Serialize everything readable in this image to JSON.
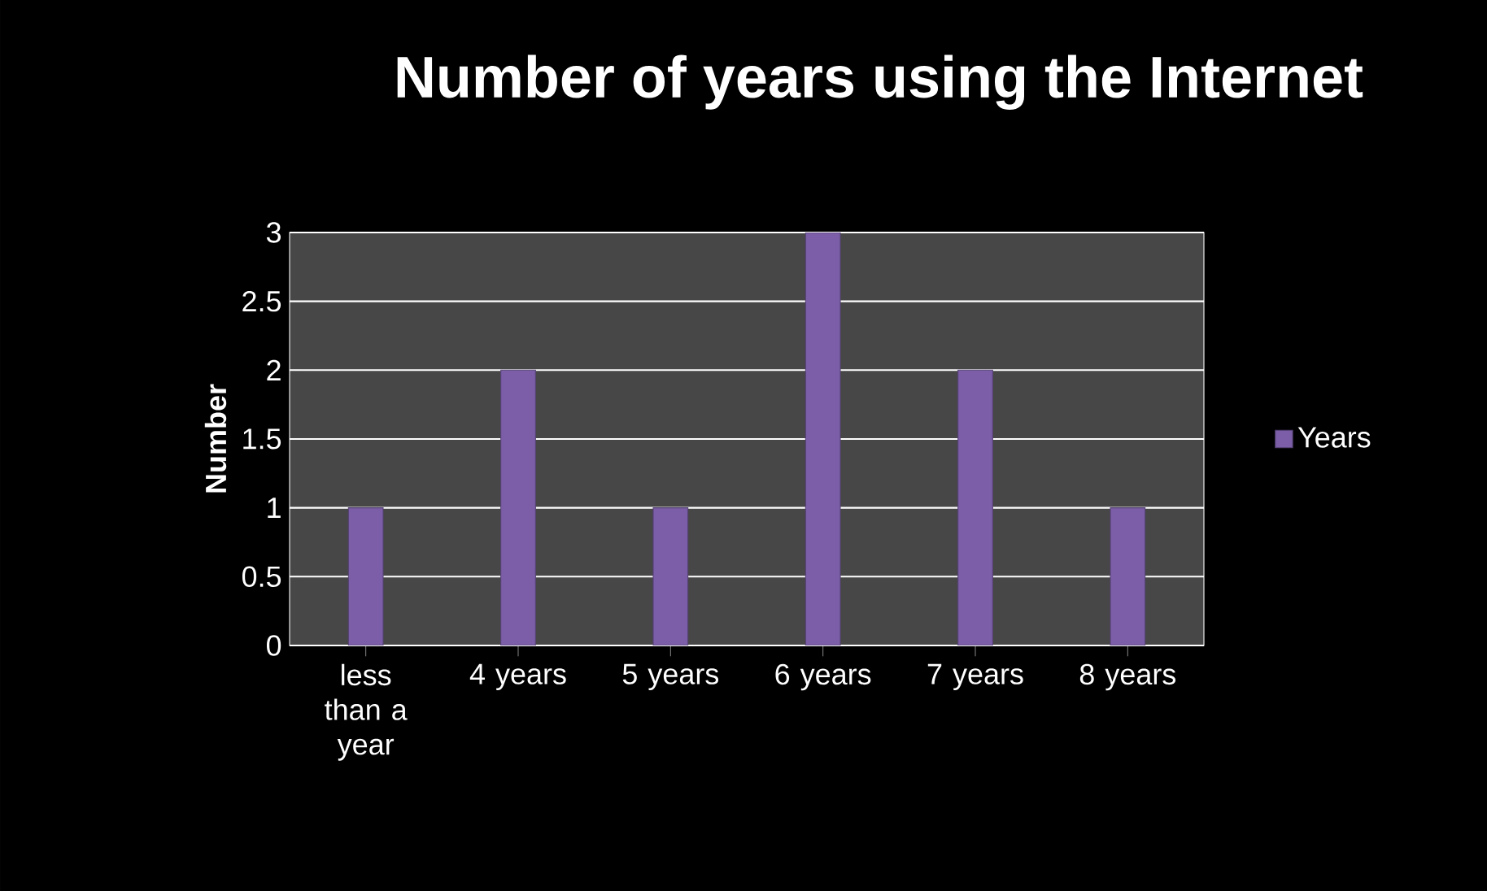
{
  "chart_data": {
    "type": "bar",
    "title": "Number of years using the Internet",
    "ylabel": "Number",
    "categories": [
      "less than a year",
      "4 years",
      "5 years",
      "6 years",
      "7 years",
      "8 years"
    ],
    "series": [
      {
        "name": "Years",
        "color": "#7b5ea7",
        "values": [
          1,
          2,
          1,
          3,
          2,
          1
        ]
      }
    ],
    "ylim": [
      0,
      3
    ],
    "yticks": [
      0,
      0.5,
      1,
      1.5,
      2,
      2.5,
      3
    ],
    "grid": "y",
    "legend": "right"
  }
}
